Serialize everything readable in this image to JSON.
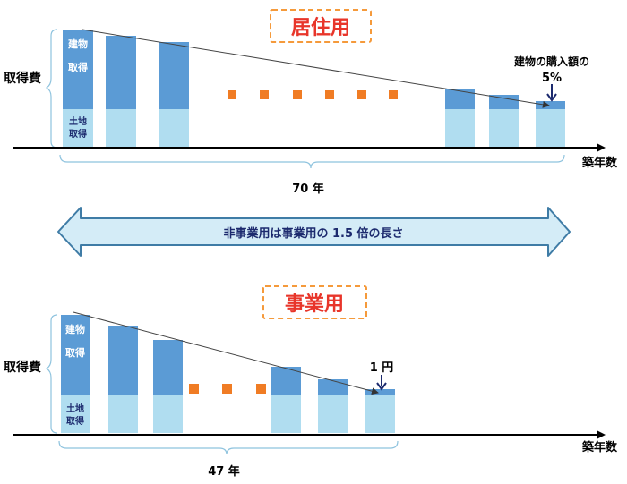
{
  "colors": {
    "building": "#5b9bd5",
    "land": "#b0ddf0",
    "dots": "#f07c24",
    "title_text": "#e8352a",
    "title_border": "#f59a3b",
    "banner_fill": "#d4ecf7",
    "banner_stroke": "#3f7ca6",
    "axis": "#000000",
    "dark_label": "#1c2a6e"
  },
  "top": {
    "title": "居住用",
    "y_label": "取得費",
    "building_label": "建物取得",
    "land_label": "土地取得",
    "callout_line1": "建物の購入額の",
    "callout_line2": "5%",
    "x_axis_label": "築年数",
    "period_label": "70 年"
  },
  "banner": {
    "text": "非事業用は事業用の 1.5 倍の長さ"
  },
  "bottom": {
    "title": "事業用",
    "y_label": "取得費",
    "building_label": "建物取得",
    "land_label": "土地取得",
    "callout": "1 円",
    "x_axis_label": "築年数",
    "period_label": "47 年"
  }
}
